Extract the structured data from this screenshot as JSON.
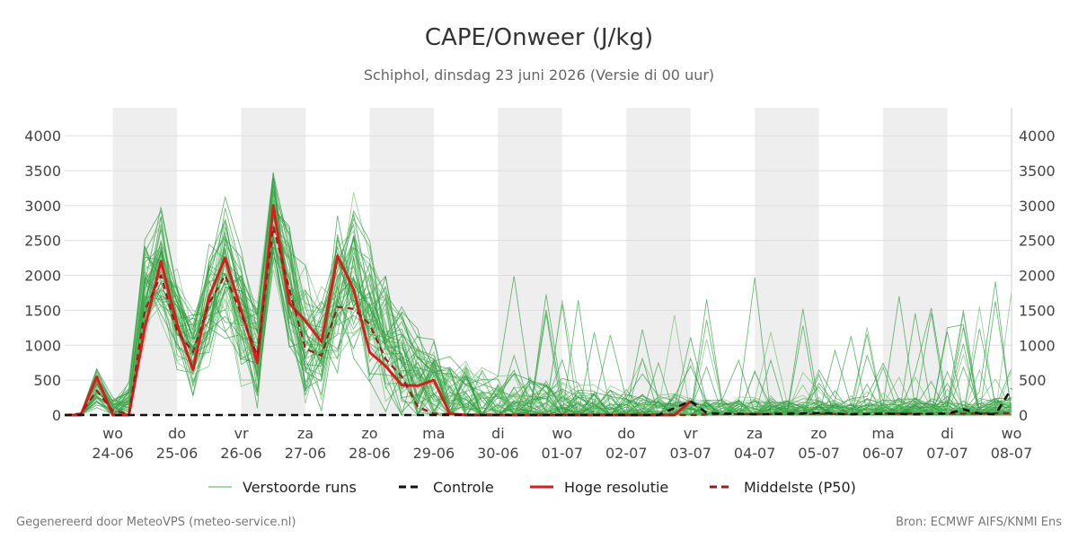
{
  "chart_data": {
    "type": "line",
    "title": "CAPE/Onweer (J/kg)",
    "subtitle": "Schiphol, dinsdag 23 juni 2026 (Versie di 00 uur)",
    "ylim": [
      0,
      4400
    ],
    "y_ticks": [
      0,
      500,
      1000,
      1500,
      2000,
      2500,
      3000,
      3500,
      4000
    ],
    "x_day_range": [
      -0.75,
      14
    ],
    "x_ticks": [
      {
        "day": 0,
        "dow": "wo",
        "date": "24-06"
      },
      {
        "day": 1,
        "dow": "do",
        "date": "25-06"
      },
      {
        "day": 2,
        "dow": "vr",
        "date": "26-06"
      },
      {
        "day": 3,
        "dow": "za",
        "date": "27-06"
      },
      {
        "day": 4,
        "dow": "zo",
        "date": "28-06"
      },
      {
        "day": 5,
        "dow": "ma",
        "date": "29-06"
      },
      {
        "day": 6,
        "dow": "di",
        "date": "30-06"
      },
      {
        "day": 7,
        "dow": "wo",
        "date": "01-07"
      },
      {
        "day": 8,
        "dow": "do",
        "date": "02-07"
      },
      {
        "day": 9,
        "dow": "vr",
        "date": "03-07"
      },
      {
        "day": 10,
        "dow": "za",
        "date": "04-07"
      },
      {
        "day": 11,
        "dow": "zo",
        "date": "05-07"
      },
      {
        "day": 12,
        "dow": "ma",
        "date": "06-07"
      },
      {
        "day": 13,
        "dow": "di",
        "date": "07-07"
      },
      {
        "day": 14,
        "dow": "wo",
        "date": "08-07"
      }
    ],
    "shaded_days": [
      0,
      2,
      4,
      6,
      8,
      10,
      12
    ],
    "grid": true,
    "legend_position": "bottom",
    "legend": [
      {
        "label": "Verstoorde runs",
        "color": "#4caf50",
        "style": "thin-solid"
      },
      {
        "label": "Controle",
        "color": "#111111",
        "style": "dashed"
      },
      {
        "label": "Hoge resolutie",
        "color": "#e0191d",
        "style": "solid"
      },
      {
        "label": "Middelste (P50)",
        "color": "#a01a1a",
        "style": "dashed"
      }
    ],
    "series": [
      {
        "name": "Hoge resolutie",
        "color": "#e0191d",
        "x": [
          -0.75,
          -0.5,
          -0.25,
          0,
          0.25,
          0.5,
          0.75,
          1,
          1.25,
          1.5,
          1.75,
          2,
          2.25,
          2.5,
          2.75,
          3,
          3.25,
          3.5,
          3.75,
          4,
          4.25,
          4.5,
          4.75,
          5,
          5.25,
          5.5,
          5.75,
          6,
          6.25,
          6.5,
          6.75,
          7,
          7.25,
          7.5,
          7.75,
          8,
          8.25,
          8.5,
          8.75,
          9
        ],
        "values": [
          0,
          0,
          550,
          0,
          0,
          1250,
          2200,
          1300,
          650,
          1700,
          2250,
          1500,
          750,
          3000,
          1600,
          1350,
          1050,
          2280,
          1800,
          900,
          700,
          430,
          420,
          500,
          20,
          0,
          0,
          0,
          0,
          0,
          0,
          0,
          0,
          0,
          0,
          0,
          0,
          0,
          0,
          200
        ]
      },
      {
        "name": "Middelste (P50)",
        "color": "#a01a1a",
        "x": [
          -0.75,
          -0.5,
          -0.25,
          0,
          0.25,
          0.5,
          0.75,
          1,
          1.25,
          1.5,
          1.75,
          2,
          2.25,
          2.5,
          2.75,
          3,
          3.25,
          3.5,
          3.75,
          4,
          4.25,
          4.5,
          4.75,
          5,
          5.25,
          5.5,
          5.75,
          6,
          6.5,
          7,
          7.5,
          8,
          8.5,
          9,
          9.5,
          10,
          10.5,
          11,
          11.5,
          12,
          12.5,
          13,
          13.5,
          14
        ],
        "values": [
          0,
          20,
          350,
          60,
          20,
          1500,
          2000,
          1200,
          900,
          1600,
          2000,
          1450,
          850,
          2700,
          1800,
          950,
          850,
          1550,
          1520,
          1300,
          800,
          550,
          120,
          20,
          10,
          0,
          0,
          0,
          0,
          0,
          0,
          0,
          0,
          0,
          10,
          10,
          10,
          15,
          15,
          20,
          20,
          20,
          20,
          30
        ]
      },
      {
        "name": "Controle",
        "color": "#111111",
        "x": [
          -0.75,
          -0.5,
          -0.25,
          0,
          0.25,
          0.5,
          0.75,
          1,
          1.5,
          2,
          2.5,
          3,
          3.5,
          4,
          4.5,
          5,
          5.5,
          6,
          6.5,
          7,
          7.5,
          8,
          8.5,
          9,
          9.25,
          9.5,
          10,
          10.5,
          11,
          11.5,
          12,
          12.5,
          13,
          13.25,
          13.5,
          13.75,
          14
        ],
        "values": [
          0,
          0,
          0,
          0,
          0,
          0,
          0,
          0,
          0,
          0,
          0,
          0,
          0,
          0,
          0,
          0,
          0,
          0,
          0,
          0,
          0,
          0,
          0,
          200,
          30,
          20,
          10,
          20,
          30,
          10,
          20,
          10,
          20,
          80,
          20,
          10,
          380
        ]
      }
    ],
    "ensemble": {
      "name": "Verstoorde runs",
      "color": "#2e9e3e",
      "members": 50,
      "x_anchor": [
        -0.75,
        -0.5,
        -0.25,
        0,
        0.25,
        0.5,
        0.75,
        1,
        1.25,
        1.5,
        1.75,
        2,
        2.25,
        2.5,
        2.75,
        3,
        3.25,
        3.5,
        3.75,
        4,
        4.25,
        4.5,
        4.75,
        5,
        5.25,
        5.5,
        5.75,
        6,
        6.5,
        7,
        7.5,
        8,
        8.5,
        9,
        9.5,
        10,
        10.5,
        11,
        11.5,
        12,
        12.5,
        13,
        13.5,
        14
      ],
      "median_anchor": [
        0,
        30,
        400,
        80,
        150,
        1800,
        2100,
        1300,
        900,
        1600,
        2100,
        1400,
        900,
        2800,
        1900,
        1100,
        900,
        1700,
        1900,
        1500,
        1100,
        700,
        500,
        350,
        250,
        200,
        150,
        120,
        100,
        80,
        60,
        50,
        40,
        40,
        40,
        40,
        40,
        40,
        40,
        40,
        40,
        40,
        40,
        40
      ],
      "spread_anchor": [
        0,
        50,
        300,
        150,
        300,
        700,
        800,
        700,
        600,
        800,
        900,
        900,
        700,
        700,
        900,
        900,
        800,
        1000,
        1100,
        1000,
        900,
        900,
        800,
        700,
        600,
        600,
        500,
        500,
        450,
        400,
        350,
        300,
        250,
        220,
        200,
        200,
        180,
        180,
        200,
        200,
        200,
        200,
        200,
        200
      ]
    }
  },
  "footer": {
    "left": "Gegenereerd door MeteoVPS (meteo-service.nl)",
    "right": "Bron: ECMWF AIFS/KNMI Ens"
  }
}
